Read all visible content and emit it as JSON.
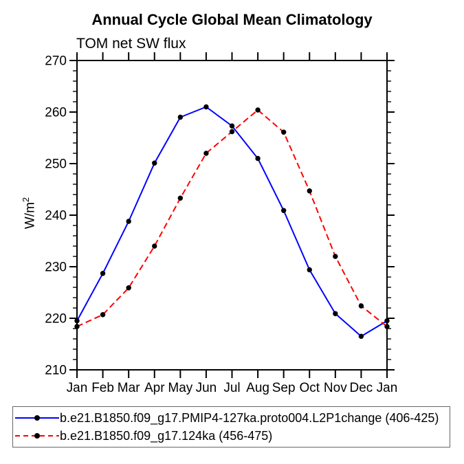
{
  "chart_data": {
    "type": "line",
    "title": "Annual Cycle Global Mean Climatology",
    "subtitle": "TOM net SW flux",
    "ylabel": "W/m²",
    "ylabel_base": "W/m",
    "ylabel_exponent": "2",
    "x_categories": [
      "Jan",
      "Feb",
      "Mar",
      "Apr",
      "May",
      "Jun",
      "Jul",
      "Aug",
      "Sep",
      "Oct",
      "Nov",
      "Dec",
      "Jan"
    ],
    "ylim": [
      210,
      270
    ],
    "y_major_tick_step": 10,
    "y_minor_tick_step": 2,
    "y_major_ticks": [
      210,
      220,
      230,
      240,
      250,
      260,
      270
    ],
    "grid": false,
    "legend_position": "bottom-left",
    "axis_color": "#000000",
    "marker_color": "#000000",
    "series": [
      {
        "name": "b.e21.B1850.f09_g17.PMIP4-127ka.proto004.L2P1change (406-425)",
        "color": "#0000ff",
        "line_style": "solid",
        "marker": "filled-circle",
        "values": [
          219.5,
          228.7,
          238.8,
          250.1,
          259.0,
          261.0,
          257.3,
          251.0,
          240.9,
          229.4,
          220.9,
          216.5,
          219.5
        ]
      },
      {
        "name": "b.e21.B1850.f09_g17.124ka (456-475)",
        "color": "#ff0000",
        "line_style": "dashed",
        "marker": "filled-circle",
        "values": [
          218.4,
          220.7,
          225.9,
          234.0,
          243.3,
          252.0,
          256.2,
          260.4,
          256.1,
          244.7,
          232.0,
          222.4,
          218.4
        ]
      }
    ]
  }
}
